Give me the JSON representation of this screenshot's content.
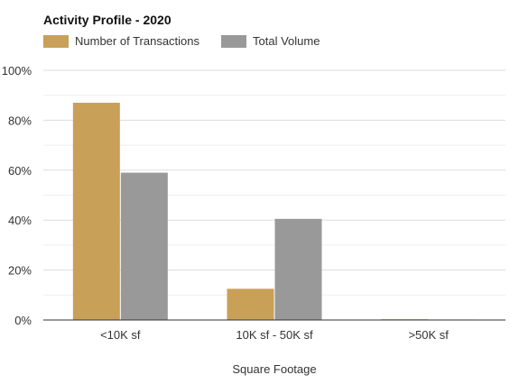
{
  "chart_data": {
    "type": "bar",
    "title": "Activity Profile - 2020",
    "categories": [
      "<10K sf",
      "10K sf - 50K sf",
      ">50K sf"
    ],
    "series": [
      {
        "name": "Number of Transactions",
        "color": "#c9a058",
        "values": [
          87,
          12.5,
          0.3
        ]
      },
      {
        "name": "Total Volume",
        "color": "#999999",
        "values": [
          59,
          40.5,
          0.2
        ]
      }
    ],
    "xlabel": "Square Footage",
    "ylabel": "",
    "ylim": [
      0,
      100
    ],
    "yticks": [
      "0%",
      "20%",
      "40%",
      "60%",
      "80%",
      "100%"
    ],
    "grid": true,
    "legend": "top-left"
  }
}
